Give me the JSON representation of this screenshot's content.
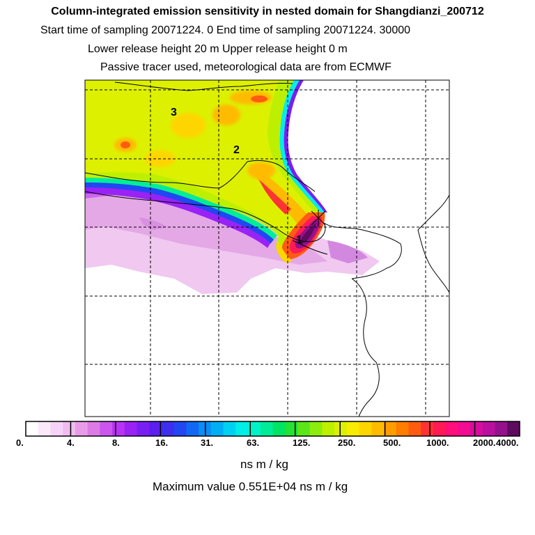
{
  "header": {
    "title": "Column-integrated emission sensitivity in nested domain for Shangdianzi_200712",
    "line2": "Start time of sampling 20071224.     0     End time of sampling 20071224. 30000",
    "line3": "Lower release height   20 m           Upper release height    0 m",
    "line4": "Passive tracer used, meteorological data are from ECMWF"
  },
  "map": {
    "labels": [
      "3",
      "2",
      "1"
    ],
    "release_site": "Shangdianzi"
  },
  "colorbar": {
    "tick_labels": [
      "0.",
      "4.",
      "8.",
      "16.",
      "31.",
      "63.",
      "125.",
      "250.",
      "500.",
      "1000.",
      "2000.",
      "4000."
    ],
    "colors": [
      "#ffffff",
      "#fbe8fb",
      "#f6d3f6",
      "#f0bdf0",
      "#e89ce8",
      "#dd7be6",
      "#cc55ee",
      "#b833f3",
      "#9922f5",
      "#7a1ff3",
      "#5b1ff0",
      "#3d2ef0",
      "#2146f2",
      "#1268f4",
      "#0a8df4",
      "#00aef5",
      "#00d1f3",
      "#00ede8",
      "#00f3c8",
      "#00ec99",
      "#00e463",
      "#23e233",
      "#5be61a",
      "#8cec0d",
      "#bdf000",
      "#ddf000",
      "#f8ec00",
      "#ffd500",
      "#ffbb00",
      "#ff9c00",
      "#ff7d00",
      "#ff5c11",
      "#ff3333",
      "#ff1a55",
      "#ff0f7a",
      "#f20c92",
      "#d80d9e",
      "#b910a0",
      "#95108c",
      "#5e0a5e"
    ],
    "units": "ns m / kg"
  },
  "footer": {
    "max_value": "Maximum value  0.551E+04 ns m / kg"
  }
}
